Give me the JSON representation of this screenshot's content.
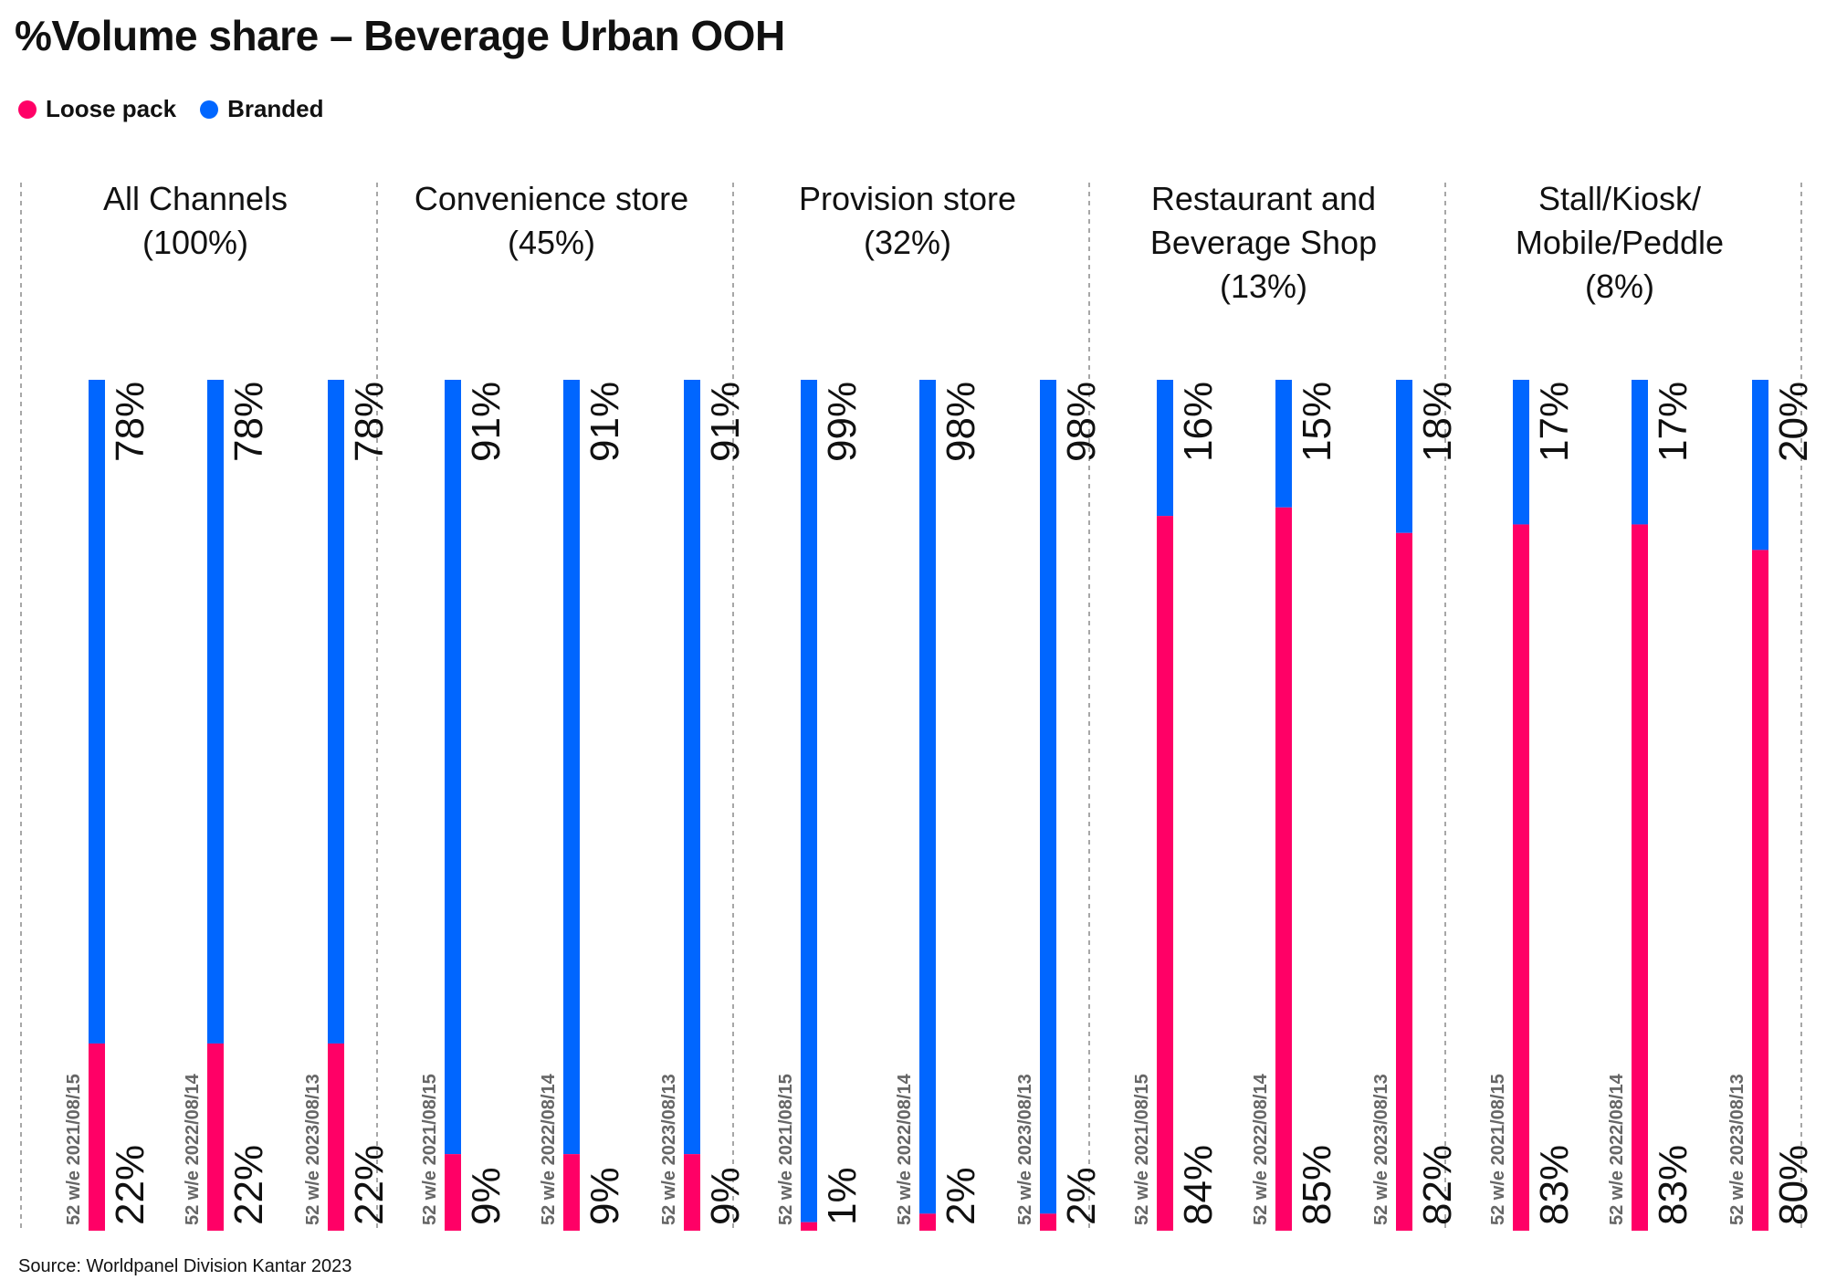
{
  "title": "%Volume share – Beverage Urban OOH",
  "source": "Source: Worldpanel Division Kantar 2023",
  "colors": {
    "loose": "#ff0066",
    "branded": "#0066ff"
  },
  "chart_data": {
    "type": "bar",
    "stacked": true,
    "orientation": "vertical",
    "ylim": [
      0,
      100
    ],
    "grid": false,
    "legend_position": "top-left",
    "series_names": [
      "Loose pack",
      "Branded"
    ],
    "periods": [
      "52 w/e 2021/08/15",
      "52 w/e 2022/08/14",
      "52 w/e 2023/08/13"
    ],
    "panels": [
      {
        "title_lines": [
          "All Channels",
          "(100%)"
        ],
        "loose": [
          22,
          22,
          22
        ],
        "branded": [
          78,
          78,
          78
        ],
        "loose_labels": [
          "22%",
          "22%",
          "22%"
        ],
        "branded_labels": [
          "78%",
          "78%",
          "78%"
        ]
      },
      {
        "title_lines": [
          "Convenience store",
          "(45%)"
        ],
        "loose": [
          9,
          9,
          9
        ],
        "branded": [
          91,
          91,
          91
        ],
        "loose_labels": [
          "9%",
          "9%",
          "9%"
        ],
        "branded_labels": [
          "91%",
          "91%",
          "91%"
        ]
      },
      {
        "title_lines": [
          "Provision store",
          "(32%)"
        ],
        "loose": [
          1,
          2,
          2
        ],
        "branded": [
          99,
          98,
          98
        ],
        "loose_labels": [
          "1%",
          "2%",
          "2%"
        ],
        "branded_labels": [
          "99%",
          "98%",
          "98%"
        ]
      },
      {
        "title_lines": [
          "Restaurant and",
          "Beverage Shop",
          "(13%)"
        ],
        "loose": [
          84,
          85,
          82
        ],
        "branded": [
          16,
          15,
          18
        ],
        "loose_labels": [
          "84%",
          "85%",
          "82%"
        ],
        "branded_labels": [
          "16%",
          "15%",
          "18%"
        ]
      },
      {
        "title_lines": [
          "Stall/Kiosk/",
          "Mobile/Peddle",
          "(8%)"
        ],
        "loose": [
          83,
          83,
          80
        ],
        "branded": [
          17,
          17,
          20
        ],
        "loose_labels": [
          "83%",
          "83%",
          "80%"
        ],
        "branded_labels": [
          "17%",
          "17%",
          "20%"
        ]
      }
    ]
  }
}
